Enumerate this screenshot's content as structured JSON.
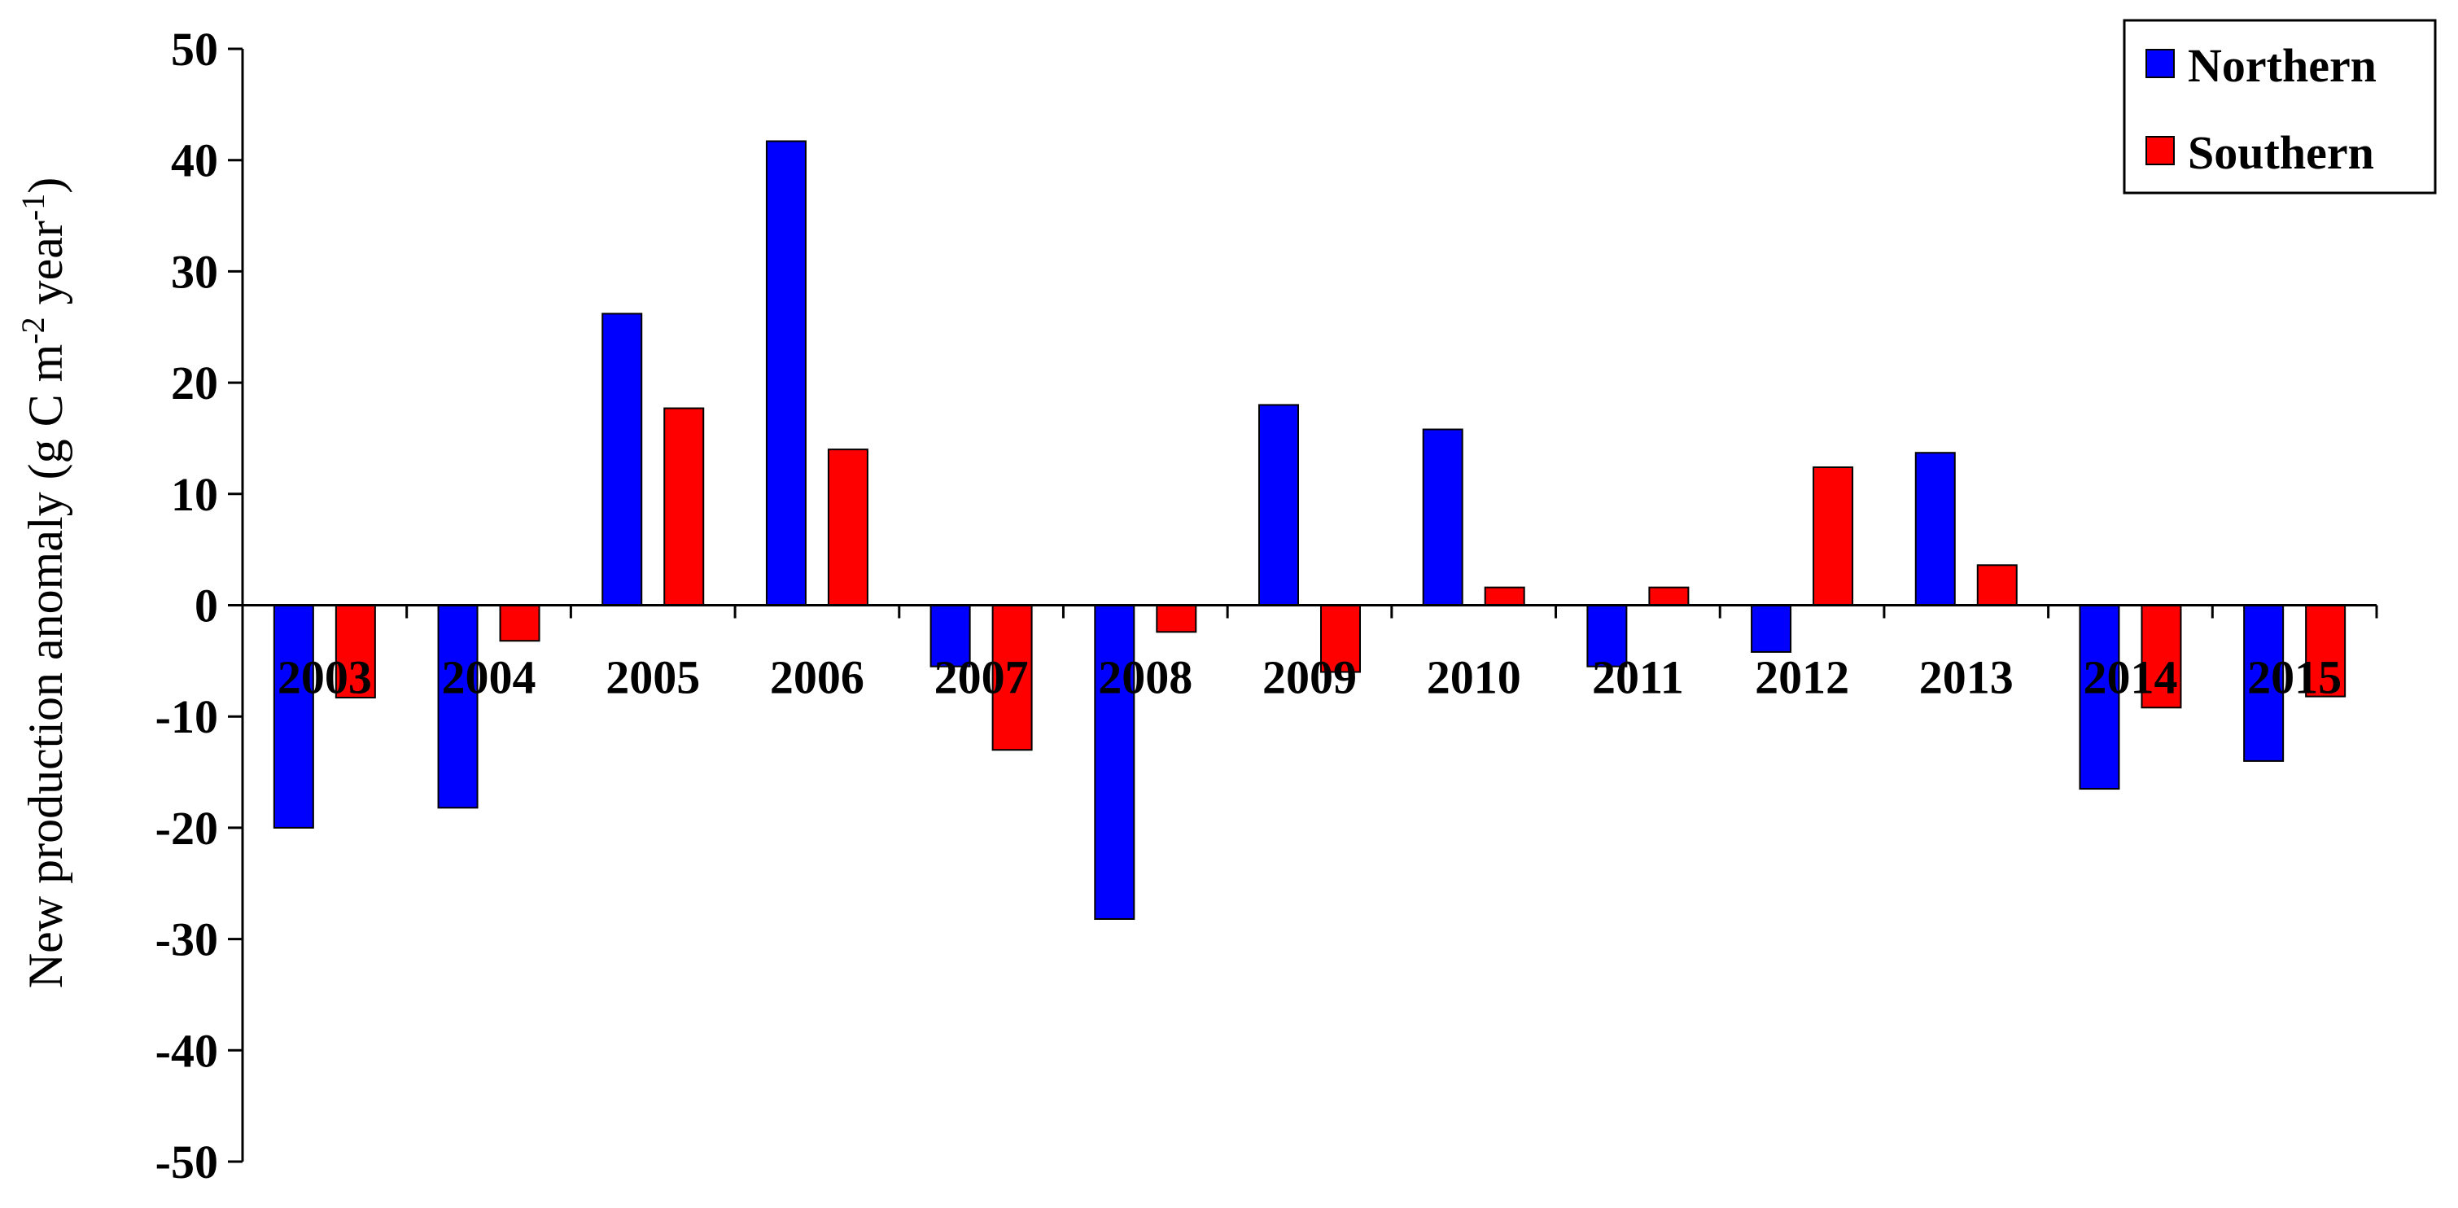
{
  "chart_data": {
    "type": "bar",
    "title": "",
    "xlabel": "",
    "ylabel": {
      "main": "New production anomaly (g C m",
      "sup1": "-2",
      "mid": " year",
      "sup2": "-1",
      "end": ")"
    },
    "ylim": [
      -50,
      50
    ],
    "yticks": [
      50,
      40,
      30,
      20,
      10,
      0,
      -10,
      -20,
      -30,
      -40,
      -50
    ],
    "categories": [
      "2003",
      "2004",
      "2005",
      "2006",
      "2007",
      "2008",
      "2009",
      "2010",
      "2011",
      "2012",
      "2013",
      "2014",
      "2015"
    ],
    "series": [
      {
        "name": "Northern",
        "color": "#0000ff",
        "values": [
          -20,
          -18.2,
          26.2,
          41.7,
          -5.5,
          -28.2,
          18,
          15.8,
          -5.5,
          -4.2,
          13.7,
          -16.5,
          -14
        ]
      },
      {
        "name": "Southern",
        "color": "#ff0000",
        "values": [
          -8.3,
          -3.2,
          17.7,
          14,
          -13,
          -2.4,
          -6,
          1.6,
          1.6,
          12.4,
          3.6,
          -9.2,
          -8.2
        ]
      }
    ],
    "legend_position": "top-right",
    "grid": false
  }
}
